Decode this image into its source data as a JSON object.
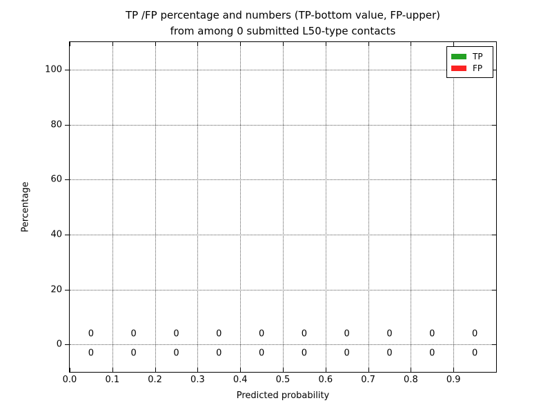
{
  "chart_data": {
    "type": "bar",
    "title_line1": "TP /FP percentage and numbers (TP-bottom value, FP-upper)",
    "title_line2": "from among 0 submitted L50-type contacts",
    "xlabel": "Predicted probability",
    "ylabel": "Percentage",
    "xlim": [
      0.0,
      1.0
    ],
    "ylim": [
      -10,
      110
    ],
    "grid": "dotted",
    "x_tick_values": [
      0.0,
      0.1,
      0.2,
      0.3,
      0.4,
      0.5,
      0.6,
      0.7,
      0.8,
      0.9
    ],
    "x_tick_labels": [
      "0.0",
      "0.1",
      "0.2",
      "0.3",
      "0.4",
      "0.5",
      "0.6",
      "0.7",
      "0.8",
      "0.9"
    ],
    "y_tick_values": [
      0,
      20,
      40,
      60,
      80,
      100
    ],
    "y_tick_labels": [
      "0",
      "20",
      "40",
      "60",
      "80",
      "100"
    ],
    "categories": [
      0.05,
      0.15,
      0.25,
      0.35,
      0.45,
      0.55,
      0.65,
      0.75,
      0.85,
      0.95
    ],
    "series": [
      {
        "name": "TP",
        "color": "#23a123",
        "values": [
          0,
          0,
          0,
          0,
          0,
          0,
          0,
          0,
          0,
          0
        ],
        "annotation_row": "below-zero-line"
      },
      {
        "name": "FP",
        "color": "#fb2323",
        "values": [
          0,
          0,
          0,
          0,
          0,
          0,
          0,
          0,
          0,
          0
        ],
        "annotation_row": "above-zero-line"
      }
    ],
    "legend": {
      "position": "upper right",
      "entries": [
        {
          "label": "TP",
          "color": "#23a123"
        },
        {
          "label": "FP",
          "color": "#fb2323"
        }
      ]
    }
  }
}
